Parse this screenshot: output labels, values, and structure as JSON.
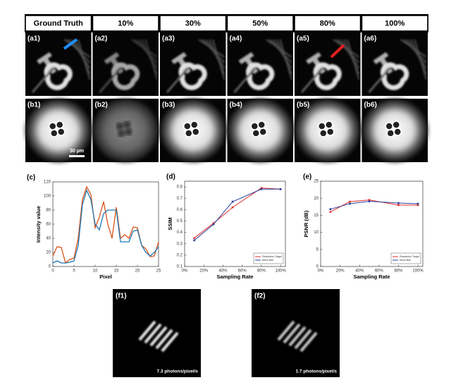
{
  "header": [
    "Ground Truth",
    "10%",
    "30%",
    "50%",
    "80%",
    "100%"
  ],
  "panels": {
    "a": [
      "(a1)",
      "(a2)",
      "(a3)",
      "(a4)",
      "(a5)",
      "(a6)"
    ],
    "b": [
      "(b1)",
      "(b2)",
      "(b3)",
      "(b4)",
      "(b5)",
      "(b6)"
    ]
  },
  "scale_bar": "30 µm",
  "chart_data": [
    {
      "type": "line",
      "label": "(c)",
      "x_label": "Pixel",
      "y_label": "Intensity value",
      "x": [
        0,
        1,
        2,
        3,
        4,
        5,
        6,
        7,
        8,
        9,
        10,
        11,
        12,
        13,
        14,
        15,
        16,
        17,
        18,
        19,
        20,
        21,
        22,
        23,
        24,
        25
      ],
      "series": [
        {
          "color": "#d95319",
          "values": [
            15,
            28,
            27,
            5,
            10,
            12,
            40,
            95,
            113,
            102,
            55,
            70,
            92,
            60,
            40,
            84,
            40,
            45,
            40,
            56,
            55,
            30,
            25,
            14,
            15,
            35
          ]
        },
        {
          "color": "#1f77b4",
          "values": [
            5,
            8,
            5,
            5,
            6,
            8,
            30,
            88,
            108,
            95,
            60,
            52,
            75,
            80,
            80,
            80,
            35,
            35,
            35,
            50,
            52,
            30,
            20,
            15,
            20,
            28
          ]
        }
      ],
      "xlim": [
        0,
        25
      ],
      "xticks": [
        0,
        5,
        10,
        15,
        20,
        25
      ],
      "ylim": [
        0,
        120
      ],
      "yticks": [
        0,
        20,
        40,
        60,
        80,
        100,
        120
      ]
    },
    {
      "type": "line",
      "label": "(d)",
      "x_label": "Sampling Rate",
      "y_label": "SSIM",
      "x": [
        10,
        30,
        50,
        80,
        100
      ],
      "series": [
        {
          "name": "Resolution Target",
          "color": "#e03030",
          "values": [
            0.35,
            0.48,
            0.62,
            0.79,
            0.78
          ]
        },
        {
          "name": "Micro Ball",
          "color": "#2a3f9a",
          "values": [
            0.33,
            0.47,
            0.67,
            0.78,
            0.78
          ]
        }
      ],
      "xlim": [
        0,
        105
      ],
      "xticks": [
        {
          "value": 0,
          "label": "0%"
        },
        {
          "value": 20,
          "label": "20%"
        },
        {
          "value": 40,
          "label": "40%"
        },
        {
          "value": 60,
          "label": "60%"
        },
        {
          "value": 80,
          "label": "80%"
        },
        {
          "value": 100,
          "label": "100%"
        }
      ],
      "ylim": [
        0.1,
        0.85
      ],
      "yticks": [
        0.1,
        0.2,
        0.3,
        0.4,
        0.5,
        0.6,
        0.7,
        0.8
      ]
    },
    {
      "type": "line",
      "label": "(e)",
      "x_label": "Sampling Rate",
      "y_label": "PSNR (dB)",
      "x": [
        10,
        30,
        50,
        80,
        100
      ],
      "series": [
        {
          "name": "Resolution Target",
          "color": "#e03030",
          "values": [
            16,
            19,
            19.5,
            18,
            18
          ]
        },
        {
          "name": "Micro Ball",
          "color": "#2a3f9a",
          "values": [
            16.8,
            18.4,
            19.1,
            18.6,
            18.4
          ]
        }
      ],
      "xlim": [
        0,
        105
      ],
      "xticks": [
        {
          "value": 0,
          "label": "0%"
        },
        {
          "value": 20,
          "label": "20%"
        },
        {
          "value": 40,
          "label": "40%"
        },
        {
          "value": 60,
          "label": "60%"
        },
        {
          "value": 80,
          "label": "80%"
        },
        {
          "value": 100,
          "label": "100%"
        }
      ],
      "ylim": [
        0,
        25
      ],
      "yticks": [
        0,
        5,
        10,
        15,
        20,
        25
      ]
    }
  ],
  "photon_panels": [
    {
      "label": "(f1)",
      "caption": "7.3 photons/pixel/s"
    },
    {
      "label": "(f2)",
      "caption": "1.7 photons/pixel/s"
    }
  ]
}
